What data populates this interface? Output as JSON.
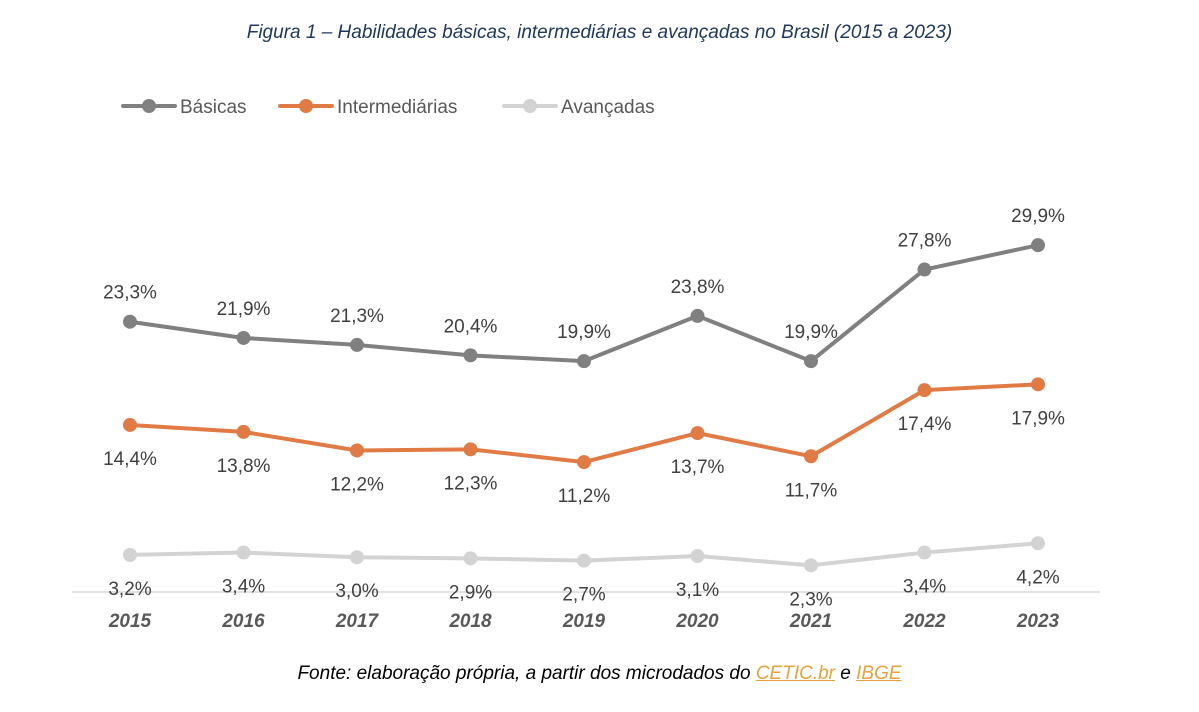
{
  "chart_data": {
    "type": "line",
    "title": "Figura 1 – Habilidades básicas, intermediárias e avançadas no Brasil (2015 a 2023)",
    "categories": [
      "2015",
      "2016",
      "2017",
      "2018",
      "2019",
      "2020",
      "2021",
      "2022",
      "2023"
    ],
    "series": [
      {
        "name": "Básicas",
        "color": "#808080",
        "values": [
          23.3,
          21.9,
          21.3,
          20.4,
          19.9,
          23.8,
          19.9,
          27.8,
          29.9
        ],
        "labels": [
          "23,3%",
          "21,9%",
          "21,3%",
          "20,4%",
          "19,9%",
          "23,8%",
          "19,9%",
          "27,8%",
          "29,9%"
        ],
        "label_position": "above"
      },
      {
        "name": "Intermediárias",
        "color": "#e07b45",
        "values": [
          14.4,
          13.8,
          12.2,
          12.3,
          11.2,
          13.7,
          11.7,
          17.4,
          17.9
        ],
        "labels": [
          "14,4%",
          "13,8%",
          "12,2%",
          "12,3%",
          "11,2%",
          "13,7%",
          "11,7%",
          "17,4%",
          "17,9%"
        ],
        "label_position": "below"
      },
      {
        "name": "Avançadas",
        "color": "#d3d3d3",
        "values": [
          3.2,
          3.4,
          3.0,
          2.9,
          2.7,
          3.1,
          2.3,
          3.4,
          4.2
        ],
        "labels": [
          "3,2%",
          "3,4%",
          "3,0%",
          "2,9%",
          "2,7%",
          "3,1%",
          "2,3%",
          "3,4%",
          "4,2%"
        ],
        "label_position": "below"
      }
    ],
    "ylim": [
      0,
      32
    ],
    "grid": false,
    "legend": "top-left",
    "xlabel": "",
    "ylabel": ""
  },
  "source": {
    "prefix": "Fonte: elaboração própria, a partir dos microdados do ",
    "link1": "CETIC.br",
    "connector": " e ",
    "link2": "IBGE"
  }
}
